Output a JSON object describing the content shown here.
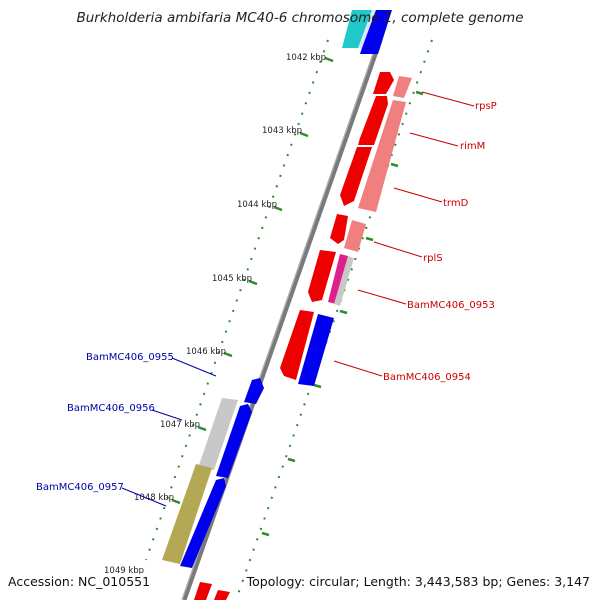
{
  "title": "Burkholderia ambifaria MC40-6 chromosome 1, complete genome",
  "footer": {
    "accession": "Accession: NC_010551",
    "summary": "Topology: circular; Length: 3,443,583 bp; Genes: 3,147"
  },
  "colors": {
    "backbone": "#808080",
    "tick": "#2e8b2e",
    "forward_gene_label": "#cc0000",
    "reverse_gene_label": "#0000aa",
    "forward_cds": "#ee0000",
    "reverse_cds": "#0000ee",
    "rrna_like": "#f08080",
    "pseudo_grey": "#c8c8c8",
    "pink": "#e0208a",
    "olive": "#b5a855",
    "cyan": "#20c8c8"
  },
  "ticks": [
    {
      "label": "1042 kbp"
    },
    {
      "label": "1043 kbp"
    },
    {
      "label": "1044 kbp"
    },
    {
      "label": "1045 kbp"
    },
    {
      "label": "1046 kbp"
    },
    {
      "label": "1047 kbp"
    },
    {
      "label": "1048 kbp"
    },
    {
      "label": "1049 kbp"
    }
  ],
  "genes_forward": [
    {
      "label": "rpsP"
    },
    {
      "label": "rimM"
    },
    {
      "label": "trmD"
    },
    {
      "label": "rplS"
    },
    {
      "label": "BamMC406_0953"
    },
    {
      "label": "BamMC406_0954"
    }
  ],
  "genes_reverse": [
    {
      "label": "BamMC406_0955"
    },
    {
      "label": "BamMC406_0956"
    },
    {
      "label": "BamMC406_0957"
    }
  ]
}
